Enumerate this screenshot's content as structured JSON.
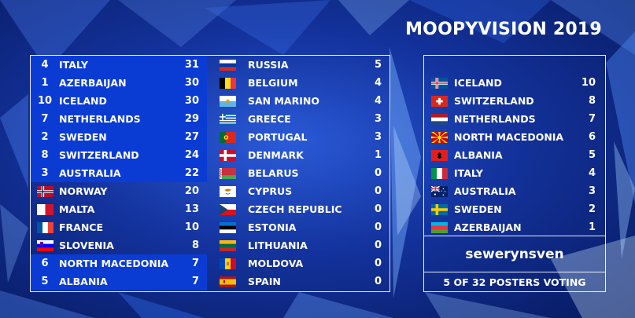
{
  "title": "MOOPYVISION 2019",
  "scoreboard": {
    "column1": [
      {
        "rank": "4",
        "country": "ITALY",
        "points": "31",
        "highlighted": true,
        "flag": "italy-flag"
      },
      {
        "rank": "1",
        "country": "AZERBAIJAN",
        "points": "30",
        "highlighted": true,
        "flag": "azerbaijan-flag"
      },
      {
        "rank": "10",
        "country": "ICELAND",
        "points": "30",
        "highlighted": true,
        "flag": "iceland-flag"
      },
      {
        "rank": "7",
        "country": "NETHERLANDS",
        "points": "29",
        "highlighted": true,
        "flag": "netherlands-flag"
      },
      {
        "rank": "2",
        "country": "SWEDEN",
        "points": "27",
        "highlighted": true,
        "flag": "sweden-flag"
      },
      {
        "rank": "8",
        "country": "SWITZERLAND",
        "points": "24",
        "highlighted": true,
        "flag": "switzerland-flag"
      },
      {
        "rank": "3",
        "country": "AUSTRALIA",
        "points": "22",
        "highlighted": true,
        "flag": "australia-flag"
      },
      {
        "rank": "",
        "country": "NORWAY",
        "points": "20",
        "highlighted": false,
        "flag": "norway-flag"
      },
      {
        "rank": "",
        "country": "MALTA",
        "points": "13",
        "highlighted": false,
        "flag": "malta-flag"
      },
      {
        "rank": "",
        "country": "FRANCE",
        "points": "10",
        "highlighted": false,
        "flag": "france-flag"
      },
      {
        "rank": "",
        "country": "SLOVENIA",
        "points": "8",
        "highlighted": false,
        "flag": "slovenia-flag"
      },
      {
        "rank": "6",
        "country": "NORTH MACEDONIA",
        "points": "7",
        "highlighted": true,
        "flag": "north-macedonia-flag"
      },
      {
        "rank": "5",
        "country": "ALBANIA",
        "points": "7",
        "highlighted": true,
        "flag": "albania-flag"
      }
    ],
    "column2": [
      {
        "country": "RUSSIA",
        "points": "5",
        "flag": "russia-flag"
      },
      {
        "country": "BELGIUM",
        "points": "4",
        "flag": "belgium-flag"
      },
      {
        "country": "SAN MARINO",
        "points": "4",
        "flag": "san-marino-flag"
      },
      {
        "country": "GREECE",
        "points": "3",
        "flag": "greece-flag"
      },
      {
        "country": "PORTUGAL",
        "points": "3",
        "flag": "portugal-flag"
      },
      {
        "country": "DENMARK",
        "points": "1",
        "flag": "denmark-flag"
      },
      {
        "country": "BELARUS",
        "points": "0",
        "flag": "belarus-flag"
      },
      {
        "country": "CYPRUS",
        "points": "0",
        "flag": "cyprus-flag"
      },
      {
        "country": "CZECH REPUBLIC",
        "points": "0",
        "flag": "czech-republic-flag"
      },
      {
        "country": "ESTONIA",
        "points": "0",
        "flag": "estonia-flag"
      },
      {
        "country": "LITHUANIA",
        "points": "0",
        "flag": "lithuania-flag"
      },
      {
        "country": "MOLDOVA",
        "points": "0",
        "flag": "moldova-flag"
      },
      {
        "country": "SPAIN",
        "points": "0",
        "flag": "spain-flag"
      }
    ]
  },
  "votes": {
    "awards": [
      {
        "country": "ICELAND",
        "points": "10",
        "flag": "iceland-flag"
      },
      {
        "country": "SWITZERLAND",
        "points": "8",
        "flag": "switzerland-flag"
      },
      {
        "country": "NETHERLANDS",
        "points": "7",
        "flag": "netherlands-flag"
      },
      {
        "country": "NORTH MACEDONIA",
        "points": "6",
        "flag": "north-macedonia-flag"
      },
      {
        "country": "ALBANIA",
        "points": "5",
        "flag": "albania-flag"
      },
      {
        "country": "ITALY",
        "points": "4",
        "flag": "italy-flag"
      },
      {
        "country": "AUSTRALIA",
        "points": "3",
        "flag": "australia-flag"
      },
      {
        "country": "SWEDEN",
        "points": "2",
        "flag": "sweden-flag"
      },
      {
        "country": "AZERBAIJAN",
        "points": "1",
        "flag": "azerbaijan-flag"
      }
    ],
    "poster": "sewerynsven",
    "voting_status": "5 OF 32 POSTERS VOTING"
  }
}
